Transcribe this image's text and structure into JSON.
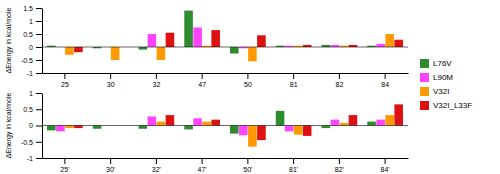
{
  "chart_data": [
    {
      "type": "bar",
      "categories": [
        "25",
        "30",
        "32",
        "47",
        "50",
        "81",
        "82",
        "84"
      ],
      "series": [
        {
          "name": "L76V",
          "color": "#2e8b2e",
          "values": [
            0.05,
            -0.05,
            -0.1,
            1.4,
            -0.25,
            0.05,
            0.08,
            0.05
          ]
        },
        {
          "name": "L90M",
          "color": "#ff44ff",
          "values": [
            0.0,
            0.0,
            0.5,
            0.75,
            -0.05,
            0.05,
            0.08,
            0.12
          ]
        },
        {
          "name": "V32I",
          "color": "#ff9900",
          "values": [
            -0.3,
            -0.5,
            -0.5,
            0.05,
            -0.55,
            0.05,
            0.05,
            0.5
          ]
        },
        {
          "name": "V32I_L33F",
          "color": "#dd1111",
          "values": [
            -0.2,
            0.0,
            0.55,
            0.65,
            0.45,
            0.08,
            0.08,
            0.28
          ]
        }
      ],
      "y_label": "ΔEnergy in kcal/mole",
      "ylim": [
        -1,
        1.5
      ],
      "yticks": [
        -1,
        -0.5,
        0,
        0.5,
        1,
        1.5
      ],
      "legend": "right"
    },
    {
      "type": "bar",
      "categories": [
        "25'",
        "30'",
        "32'",
        "47'",
        "50'",
        "81'",
        "82'",
        "84'"
      ],
      "series": [
        {
          "name": "L76V",
          "color": "#2e8b2e",
          "values": [
            -0.15,
            -0.1,
            -0.1,
            -0.12,
            -0.25,
            0.45,
            -0.08,
            0.12
          ]
        },
        {
          "name": "L90M",
          "color": "#ff44ff",
          "values": [
            -0.18,
            0.0,
            0.28,
            0.22,
            -0.3,
            -0.18,
            0.18,
            0.18
          ]
        },
        {
          "name": "V32I",
          "color": "#ff9900",
          "values": [
            -0.08,
            0.0,
            0.12,
            0.12,
            -0.65,
            -0.28,
            0.08,
            0.32
          ]
        },
        {
          "name": "V32I_L33F",
          "color": "#dd1111",
          "values": [
            -0.08,
            0.0,
            0.32,
            0.18,
            -0.45,
            -0.32,
            0.32,
            0.65
          ]
        }
      ],
      "y_label": "ΔEnergy in kcal/mole",
      "ylim": [
        -1,
        1
      ],
      "yticks": [
        -1,
        -0.5,
        0,
        0.5,
        1
      ]
    }
  ]
}
